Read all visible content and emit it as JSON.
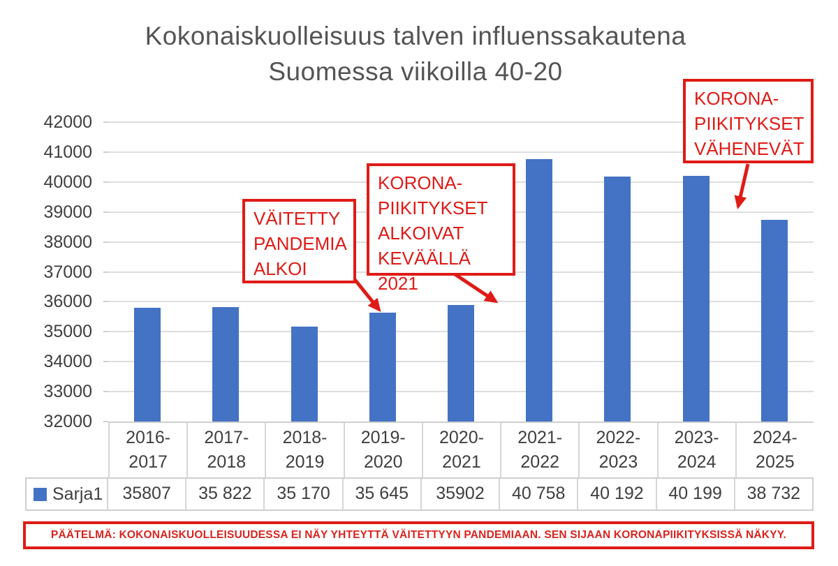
{
  "title": {
    "lines": [
      "Kokonaiskuolleisuus talven influenssakautena",
      "Suomessa viikoilla 40-20"
    ]
  },
  "chart_data": {
    "type": "bar",
    "title": "Kokonaiskuolleisuus talven influenssakautena Suomessa viikoilla 40-20",
    "categories": [
      "2016-2017",
      "2017-2018",
      "2018-2019",
      "2019-2020",
      "2020-2021",
      "2021-2022",
      "2022-2023",
      "2023-2024",
      "2024-2025"
    ],
    "series": [
      {
        "name": "Sarja1",
        "values": [
          35807,
          35822,
          35170,
          35645,
          35902,
          40758,
          40192,
          40199,
          38732
        ]
      }
    ],
    "value_labels": [
      "35807",
      "35 822",
      "35 170",
      "35 645",
      "35902",
      "40 758",
      "40 192",
      "40 199",
      "38 732"
    ],
    "xlabel": "",
    "ylabel": "",
    "ylim": [
      32000,
      42000
    ],
    "ytick_step": 1000,
    "grid": true,
    "legend_position": "bottom table row",
    "bar_color": "#4472c4"
  },
  "annotations": [
    {
      "id": "claimed-pandemic-start",
      "lines": [
        "VÄITETTY",
        "PANDEMIA",
        "ALKOI"
      ]
    },
    {
      "id": "covid-vaccinations-started",
      "lines": [
        "KORONA-",
        "PIIKITYKSET",
        "ALKOIVAT",
        "KEVÄÄLLÄ 2021"
      ]
    },
    {
      "id": "covid-vaccinations-declining",
      "lines": [
        "KORONA-",
        "PIIKITYKSET",
        "VÄHENEVÄT"
      ]
    }
  ],
  "conclusion": {
    "text": "PÄÄTELMÄ: KOKONAISKUOLLEISUUDESSA EI NÄY YHTEYTTÄ VÄITETTYYN PANDEMIAAN. SEN SIJAAN KORONAPIIKITYKSISSÄ NÄKYY."
  },
  "colors": {
    "bar_blue": "#4472c4",
    "annotation_red": "#df1b17",
    "title_gray": "#545454",
    "axis_text_gray": "#3f3f3f",
    "gridline_gray": "#dedede"
  }
}
